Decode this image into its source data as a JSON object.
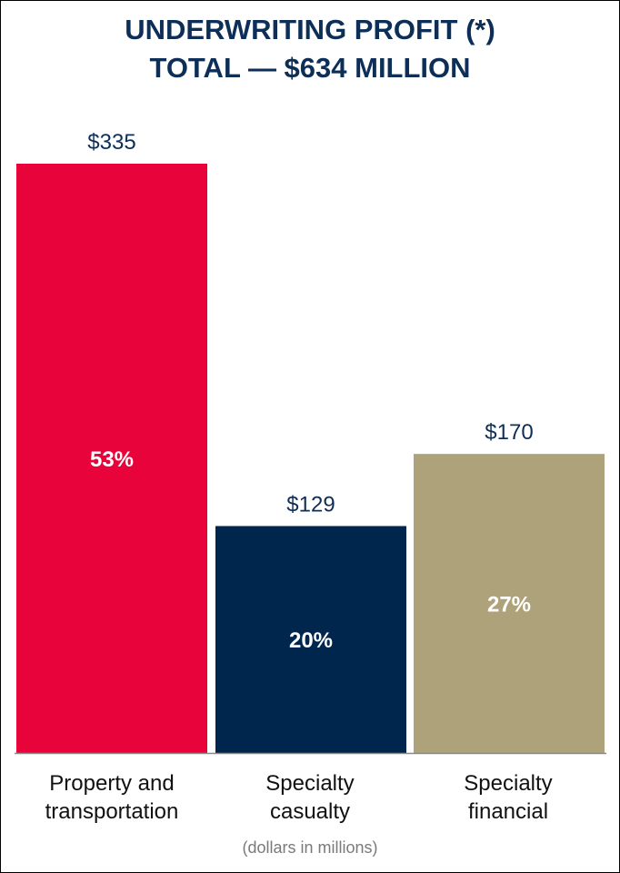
{
  "chart_data": {
    "type": "bar",
    "title": [
      "UNDERWRITING PROFIT (*)",
      "TOTAL — $634 MILLION"
    ],
    "categories": [
      [
        "Property and",
        "transportation"
      ],
      [
        "Specialty",
        "casualty"
      ],
      [
        "Specialty",
        "financial"
      ]
    ],
    "values": [
      335,
      129,
      170
    ],
    "value_labels": [
      "$335",
      "$129",
      "$170"
    ],
    "share_labels": [
      "53%",
      "20%",
      "27%"
    ],
    "colors": [
      "#e8043a",
      "#00264d",
      "#aea27a"
    ],
    "ylim": [
      0,
      335
    ],
    "note": "(dollars in millions)"
  },
  "colors": {
    "title": "#0d2f57",
    "value_label": "#0d2f57",
    "share_label": "#ffffff",
    "axis": "#888888"
  }
}
